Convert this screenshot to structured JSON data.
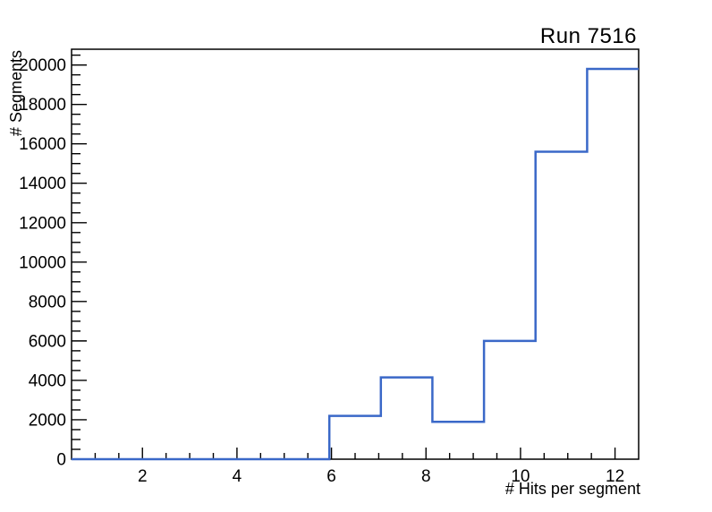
{
  "chart_data": {
    "type": "bar",
    "subtype": "step-histogram",
    "title": "Run 7516",
    "xlabel": "# Hits per segment",
    "ylabel": "# Segments",
    "xlim": [
      0.5,
      12.5
    ],
    "ylim": [
      0,
      20800
    ],
    "x_major_ticks": [
      2,
      4,
      6,
      8,
      10,
      12
    ],
    "x_minor_step": 0.5,
    "y_major_ticks": [
      0,
      2000,
      4000,
      6000,
      8000,
      10000,
      12000,
      14000,
      16000,
      18000,
      20000
    ],
    "y_minor_step": 500,
    "bin_edges": [
      0.5,
      1.591,
      2.682,
      3.773,
      4.864,
      5.955,
      7.045,
      8.136,
      9.227,
      10.318,
      11.409,
      12.5
    ],
    "counts": [
      0,
      0,
      0,
      0,
      0,
      2200,
      4150,
      1900,
      6000,
      15600,
      19800
    ],
    "line_color": "#3a68c8",
    "frame_color": "#000000",
    "background_color": "#ffffff",
    "grid": false,
    "legend": "none"
  }
}
